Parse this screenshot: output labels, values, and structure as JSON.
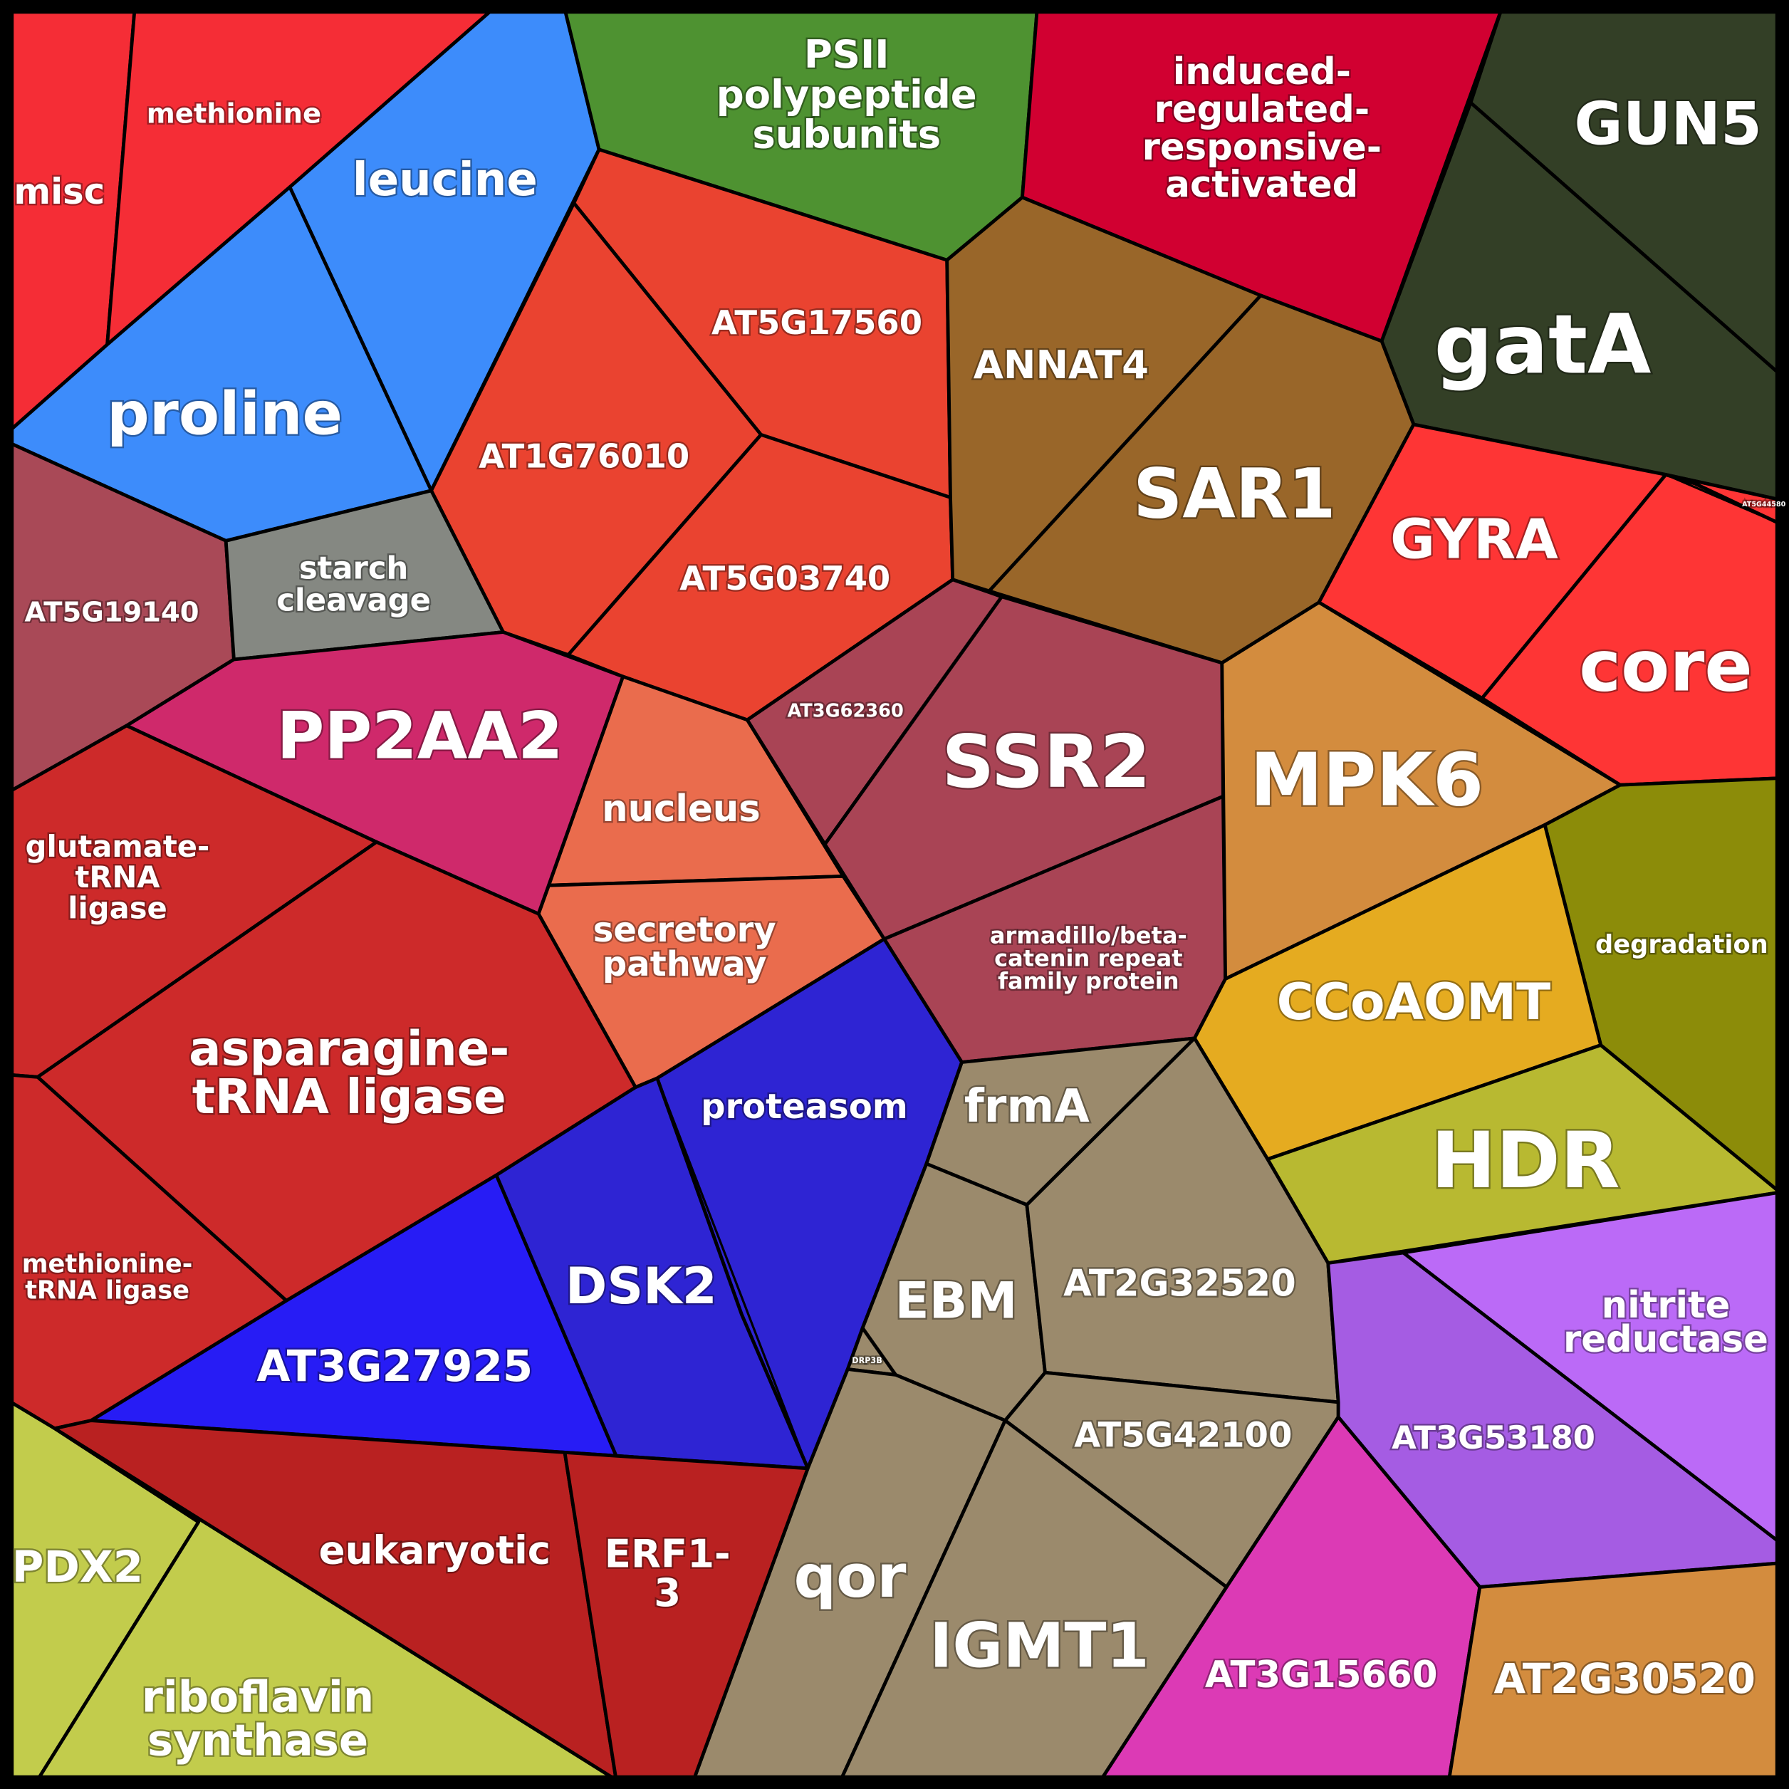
{
  "cells": [
    {
      "name": "misc",
      "color": "#f52d36"
    },
    {
      "name": "methionine",
      "color": "#f52d36"
    },
    {
      "name": "leucine",
      "color": "#3d8cfb"
    },
    {
      "name": "proline",
      "color": "#3d8cfb"
    },
    {
      "name": "PSII polypeptide subunits",
      "color": "#4e9231"
    },
    {
      "name": "induced-regulated-responsive-activated",
      "color": "#d10031"
    },
    {
      "name": "GUN5",
      "color": "#333f26"
    },
    {
      "name": "gatA",
      "color": "#333f26"
    },
    {
      "name": "AT5G17560",
      "color": "#ea4330"
    },
    {
      "name": "AT1G76010",
      "color": "#ea4330"
    },
    {
      "name": "AT5G03740",
      "color": "#ea4330"
    },
    {
      "name": "ANNAT4",
      "color": "#996629"
    },
    {
      "name": "SAR1",
      "color": "#996629"
    },
    {
      "name": "AT5G19140",
      "color": "#a94957"
    },
    {
      "name": "starch cleavage",
      "color": "#858882"
    },
    {
      "name": "GYRA",
      "color": "#fe3535"
    },
    {
      "name": "core",
      "color": "#fe3535"
    },
    {
      "name": "AT5G44580",
      "color": "#fe3535"
    },
    {
      "name": "PP2AA2",
      "color": "#cf296b"
    },
    {
      "name": "nucleus",
      "color": "#ea6c4d"
    },
    {
      "name": "secretory pathway",
      "color": "#ea6c4d"
    },
    {
      "name": "AT3G62360",
      "color": "#a94455"
    },
    {
      "name": "SSR2",
      "color": "#a94455"
    },
    {
      "name": "armadillo/beta-catenin repeat family protein",
      "color": "#a94455"
    },
    {
      "name": "MPK6",
      "color": "#d38c3e"
    },
    {
      "name": "glutamate-tRNA ligase",
      "color": "#cd2a2a"
    },
    {
      "name": "asparagine-tRNA ligase",
      "color": "#cd2a2a"
    },
    {
      "name": "methionine-tRNA ligase",
      "color": "#cd2a2a"
    },
    {
      "name": "degradation",
      "color": "#8c8c09"
    },
    {
      "name": "CCoAOMT",
      "color": "#e5ab20"
    },
    {
      "name": "HDR",
      "color": "#b8b931"
    },
    {
      "name": "proteasom",
      "color": "#2e24d3"
    },
    {
      "name": "DSK2",
      "color": "#2e24d3"
    },
    {
      "name": "AT3G27925",
      "color": "#271cf5"
    },
    {
      "name": "frmA",
      "color": "#9b8a6c"
    },
    {
      "name": "EBM",
      "color": "#9b8a6c"
    },
    {
      "name": "AT2G32520",
      "color": "#9b8a6c"
    },
    {
      "name": "DRP3B",
      "color": "#9b8a6c"
    },
    {
      "name": "AT5G42100",
      "color": "#9b8a6c"
    },
    {
      "name": "qor",
      "color": "#9b8a6c"
    },
    {
      "name": "IGMT1",
      "color": "#9b8a6c"
    },
    {
      "name": "nitrite reductase",
      "color": "#bb6af7"
    },
    {
      "name": "AT3G53180",
      "color": "#a55ce3"
    },
    {
      "name": "AT3G15660",
      "color": "#dc3ab5"
    },
    {
      "name": "AT2G30520",
      "color": "#d38c3e"
    },
    {
      "name": "PDX2",
      "color": "#c2cc4c"
    },
    {
      "name": "riboflavin synthase",
      "color": "#c2cc4c"
    },
    {
      "name": "eukaryotic",
      "color": "#b92121"
    },
    {
      "name": "ERF1-3",
      "color": "#b92121"
    }
  ],
  "labels": {
    "misc": "misc",
    "methionine": "methionine",
    "leucine": "leucine",
    "proline": "proline",
    "psii_1": "PSII",
    "psii_2": "polypeptide",
    "psii_3": "subunits",
    "induced_1": "induced-",
    "induced_2": "regulated-",
    "induced_3": "responsive-",
    "induced_4": "activated",
    "gun5": "GUN5",
    "gata": "gatA",
    "at5g17560": "AT5G17560",
    "at1g76010": "AT1G76010",
    "at5g03740": "AT5G03740",
    "annat4": "ANNAT4",
    "sar1": "SAR1",
    "at5g19140": "AT5G19140",
    "starch_1": "starch",
    "starch_2": "cleavage",
    "gyra": "GYRA",
    "core": "core",
    "at5g44580": "AT5G44580",
    "pp2aa2": "PP2AA2",
    "nucleus": "nucleus",
    "secretory_1": "secretory",
    "secretory_2": "pathway",
    "at3g62360": "AT3G62360",
    "ssr2": "SSR2",
    "armadillo_1": "armadillo/beta-",
    "armadillo_2": "catenin repeat",
    "armadillo_3": "family protein",
    "mpk6": "MPK6",
    "glutamate_1": "glutamate-",
    "glutamate_2": "tRNA",
    "glutamate_3": "ligase",
    "asparagine_1": "asparagine-",
    "asparagine_2": "tRNA ligase",
    "methtrna_1": "methionine-",
    "methtrna_2": "tRNA ligase",
    "degradation": "degradation",
    "ccoaomt": "CCoAOMT",
    "hdr": "HDR",
    "proteasom": "proteasom",
    "dsk2": "DSK2",
    "at3g27925": "AT3G27925",
    "frma": "frmA",
    "ebm": "EBM",
    "at2g32520": "AT2G32520",
    "drp3b": "DRP3B",
    "at5g42100": "AT5G42100",
    "qor": "qor",
    "igmt1": "IGMT1",
    "nitrite_1": "nitrite",
    "nitrite_2": "reductase",
    "at3g53180": "AT3G53180",
    "at3g15660": "AT3G15660",
    "at2g30520": "AT2G30520",
    "pdx2": "PDX2",
    "riboflavin_1": "riboflavin",
    "riboflavin_2": "synthase",
    "eukaryotic": "eukaryotic",
    "erf_1": "ERF1-",
    "erf_2": "3"
  }
}
